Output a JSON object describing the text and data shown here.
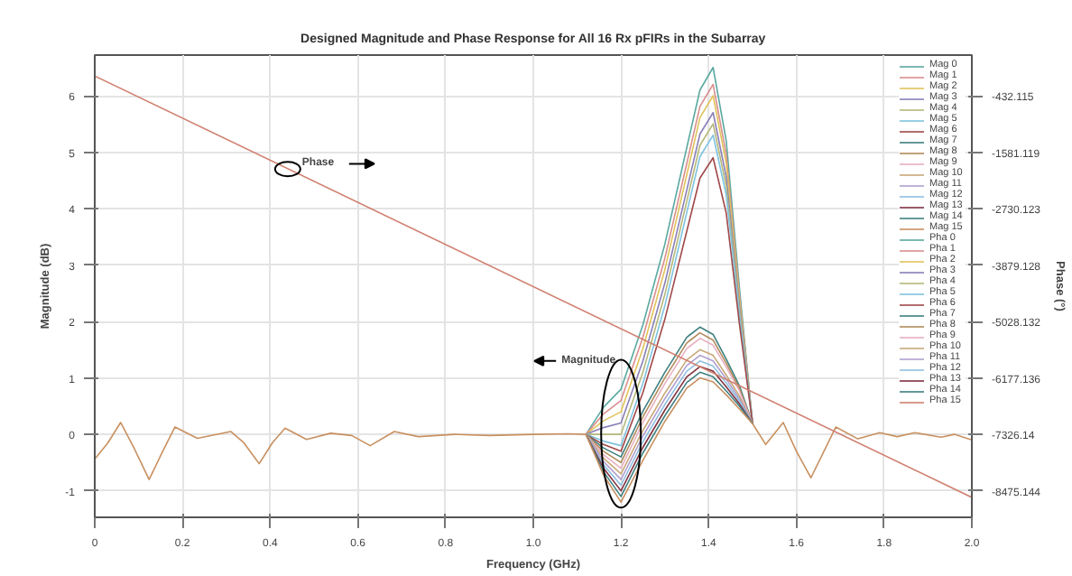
{
  "chart_data": {
    "type": "line",
    "title": "Designed Magnitude and Phase Response for All 16 Rx pFIRs in the Subarray",
    "xlabel": "Frequency (GHz)",
    "ylabel": "Magnitude (dB)",
    "y2label": "Phase (°)",
    "xlim": [
      0,
      2
    ],
    "ylim": [
      -1.47,
      6.72
    ],
    "y2lim": [
      -9015.2,
      395.2
    ],
    "xticks": [
      0,
      0.2,
      0.4,
      0.6,
      0.8,
      {
        "value": 1,
        "label": "1.0"
      },
      1.2,
      1.4,
      1.6,
      1.8,
      {
        "value": 2,
        "label": "2.0"
      }
    ],
    "yticks": [
      -1,
      0,
      1,
      2,
      3,
      4,
      5,
      6
    ],
    "y2ticks": [
      -8475.144,
      -7326.14,
      -6177.136,
      -5028.132,
      -3879.128,
      -2730.123,
      -1581.119,
      -432.115
    ],
    "grid": true,
    "legend": "top right",
    "annotations": [
      {
        "text": "Phase",
        "x": 0.44,
        "y": 4.7
      },
      {
        "text": "Magnitude",
        "x": 1.2,
        "y": 1.3
      }
    ],
    "x": [
      0,
      0.03,
      0.059,
      0.09,
      0.124,
      0.155,
      0.183,
      0.234,
      0.31,
      0.34,
      0.375,
      0.405,
      0.434,
      0.483,
      0.538,
      0.586,
      0.628,
      0.683,
      0.738,
      0.82,
      0.9,
      1.0,
      1.08,
      1.12,
      1.16,
      1.2,
      1.25,
      1.3,
      1.35,
      1.38,
      1.41,
      1.44,
      1.47,
      1.5,
      1.53,
      1.57,
      1.6,
      1.633,
      1.69,
      1.74,
      1.79,
      1.83,
      1.87,
      1.93,
      1.96,
      2.0
    ],
    "series": [
      {
        "name": "Mag 0",
        "color": "#5aa9a0",
        "values": [
          null,
          null,
          null,
          null,
          null,
          null,
          null,
          null,
          null,
          null,
          null,
          null,
          null,
          null,
          null,
          null,
          null,
          null,
          null,
          null,
          null,
          null,
          null,
          0,
          0.48,
          0.8,
          1.94,
          3.37,
          5.08,
          6.1,
          6.5,
          5.2,
          2.6,
          0.19,
          null,
          null,
          null,
          null,
          null,
          null,
          null,
          null,
          null,
          null,
          null,
          null
        ]
      },
      {
        "name": "Mag 1",
        "color": "#d98f8f",
        "values": [
          null,
          null,
          null,
          null,
          null,
          null,
          null,
          null,
          null,
          null,
          null,
          null,
          null,
          null,
          null,
          null,
          null,
          null,
          null,
          null,
          null,
          null,
          null,
          0,
          0.36,
          0.6,
          1.72,
          3.12,
          4.8,
          5.81,
          6.2,
          4.96,
          2.48,
          0.19,
          null,
          null,
          null,
          null,
          null,
          null,
          null,
          null,
          null,
          null,
          null,
          null
        ]
      },
      {
        "name": "Mag 2",
        "color": "#e0c35a",
        "values": [
          null,
          null,
          null,
          null,
          null,
          null,
          null,
          null,
          null,
          null,
          null,
          null,
          null,
          null,
          null,
          null,
          null,
          null,
          null,
          null,
          null,
          null,
          null,
          0,
          0.24,
          0.4,
          1.52,
          2.92,
          4.6,
          5.61,
          6.0,
          4.8,
          2.4,
          0.19,
          null,
          null,
          null,
          null,
          null,
          null,
          null,
          null,
          null,
          null,
          null,
          null
        ]
      },
      {
        "name": "Mag 3",
        "color": "#8a7fb8",
        "values": [
          null,
          null,
          null,
          null,
          null,
          null,
          null,
          null,
          null,
          null,
          null,
          null,
          null,
          null,
          null,
          null,
          null,
          null,
          null,
          null,
          null,
          null,
          null,
          0,
          0.12,
          0.2,
          1.3,
          2.68,
          4.33,
          5.32,
          5.7,
          4.56,
          2.28,
          0.19,
          null,
          null,
          null,
          null,
          null,
          null,
          null,
          null,
          null,
          null,
          null,
          null
        ]
      },
      {
        "name": "Mag 4",
        "color": "#b5b87a",
        "values": [
          null,
          null,
          null,
          null,
          null,
          null,
          null,
          null,
          null,
          null,
          null,
          null,
          null,
          null,
          null,
          null,
          null,
          null,
          null,
          null,
          null,
          null,
          null,
          0,
          0,
          0,
          1.1,
          2.48,
          4.13,
          5.12,
          5.5,
          4.4,
          2.2,
          0.19,
          null,
          null,
          null,
          null,
          null,
          null,
          null,
          null,
          null,
          null,
          null,
          null
        ]
      },
      {
        "name": "Mag 5",
        "color": "#7fc3e0",
        "values": [
          null,
          null,
          null,
          null,
          null,
          null,
          null,
          null,
          null,
          null,
          null,
          null,
          null,
          null,
          null,
          null,
          null,
          null,
          null,
          null,
          null,
          null,
          null,
          0,
          -0.12,
          -0.2,
          0.9,
          2.28,
          3.93,
          4.92,
          5.3,
          4.24,
          2.12,
          0.19,
          null,
          null,
          null,
          null,
          null,
          null,
          null,
          null,
          null,
          null,
          null,
          null
        ]
      },
      {
        "name": "Mag 6",
        "color": "#a04848",
        "values": [
          null,
          null,
          null,
          null,
          null,
          null,
          null,
          null,
          null,
          null,
          null,
          null,
          null,
          null,
          null,
          null,
          null,
          null,
          null,
          null,
          null,
          null,
          null,
          0,
          -0.18,
          -0.3,
          0.74,
          2.04,
          3.6,
          4.54,
          4.9,
          3.92,
          1.96,
          0.19,
          null,
          null,
          null,
          null,
          null,
          null,
          null,
          null,
          null,
          null,
          null,
          null
        ]
      },
      {
        "name": "Mag 7",
        "color": "#3f7f7f",
        "values": [
          null,
          null,
          null,
          null,
          null,
          null,
          null,
          null,
          null,
          null,
          null,
          null,
          null,
          null,
          null,
          null,
          null,
          null,
          null,
          null,
          null,
          null,
          null,
          0,
          -0.24,
          -0.4,
          0.41,
          1.1,
          1.72,
          1.9,
          1.77,
          1.33,
          0.86,
          0.19,
          null,
          null,
          null,
          null,
          null,
          null,
          null,
          null,
          null,
          null,
          null,
          null
        ]
      },
      {
        "name": "Mag 8",
        "color": "#b08a5a",
        "values": [
          null,
          null,
          null,
          null,
          null,
          null,
          null,
          null,
          null,
          null,
          null,
          null,
          null,
          null,
          null,
          null,
          null,
          null,
          null,
          null,
          null,
          null,
          null,
          0,
          -0.3,
          -0.5,
          0.31,
          1.0,
          1.62,
          1.8,
          1.67,
          1.26,
          0.81,
          0.19,
          null,
          null,
          null,
          null,
          null,
          null,
          null,
          null,
          null,
          null,
          null,
          null
        ]
      },
      {
        "name": "Mag 9",
        "color": "#e8b0c0",
        "values": [
          null,
          null,
          null,
          null,
          null,
          null,
          null,
          null,
          null,
          null,
          null,
          null,
          null,
          null,
          null,
          null,
          null,
          null,
          null,
          null,
          null,
          null,
          null,
          0,
          -0.36,
          -0.6,
          0.21,
          0.9,
          1.52,
          1.7,
          1.58,
          1.19,
          0.77,
          0.19,
          null,
          null,
          null,
          null,
          null,
          null,
          null,
          null,
          null,
          null,
          null,
          null
        ]
      },
      {
        "name": "Mag 10",
        "color": "#c8a878",
        "values": [
          null,
          null,
          null,
          null,
          null,
          null,
          null,
          null,
          null,
          null,
          null,
          null,
          null,
          null,
          null,
          null,
          null,
          null,
          null,
          null,
          null,
          null,
          null,
          0,
          -0.42,
          -0.7,
          0.07,
          0.73,
          1.32,
          1.5,
          1.4,
          1.05,
          0.68,
          0.19,
          null,
          null,
          null,
          null,
          null,
          null,
          null,
          null,
          null,
          null,
          null,
          null
        ]
      },
      {
        "name": "Mag 11",
        "color": "#b0a0d0",
        "values": [
          null,
          null,
          null,
          null,
          null,
          null,
          null,
          null,
          null,
          null,
          null,
          null,
          null,
          null,
          null,
          null,
          null,
          null,
          null,
          null,
          null,
          null,
          null,
          0,
          -0.48,
          -0.8,
          -0.03,
          0.63,
          1.22,
          1.4,
          1.3,
          0.98,
          0.63,
          0.19,
          null,
          null,
          null,
          null,
          null,
          null,
          null,
          null,
          null,
          null,
          null,
          null
        ]
      },
      {
        "name": "Mag 12",
        "color": "#90c0e0",
        "values": [
          null,
          null,
          null,
          null,
          null,
          null,
          null,
          null,
          null,
          null,
          null,
          null,
          null,
          null,
          null,
          null,
          null,
          null,
          null,
          null,
          null,
          null,
          null,
          0,
          -0.54,
          -0.9,
          -0.13,
          0.53,
          1.12,
          1.3,
          1.21,
          0.91,
          0.59,
          0.19,
          null,
          null,
          null,
          null,
          null,
          null,
          null,
          null,
          null,
          null,
          null,
          null
        ]
      },
      {
        "name": "Mag 13",
        "color": "#803040",
        "values": [
          null,
          null,
          null,
          null,
          null,
          null,
          null,
          null,
          null,
          null,
          null,
          null,
          null,
          null,
          null,
          null,
          null,
          null,
          null,
          null,
          null,
          null,
          null,
          0,
          -0.6,
          -1.0,
          -0.23,
          0.43,
          1.02,
          1.2,
          1.12,
          0.84,
          0.54,
          0.19,
          null,
          null,
          null,
          null,
          null,
          null,
          null,
          null,
          null,
          null,
          null,
          null
        ]
      },
      {
        "name": "Mag 14",
        "color": "#408080",
        "values": [
          null,
          null,
          null,
          null,
          null,
          null,
          null,
          null,
          null,
          null,
          null,
          null,
          null,
          null,
          null,
          null,
          null,
          null,
          null,
          null,
          null,
          null,
          null,
          0,
          -0.66,
          -1.1,
          -0.33,
          0.33,
          0.92,
          1.1,
          1.02,
          0.77,
          0.5,
          0.19,
          null,
          null,
          null,
          null,
          null,
          null,
          null,
          null,
          null,
          null,
          null,
          null
        ]
      },
      {
        "name": "Mag 15",
        "color": "#c89060",
        "values": [
          -0.44,
          -0.15,
          0.21,
          -0.25,
          -0.8,
          -0.3,
          0.13,
          -0.07,
          0.05,
          -0.15,
          -0.52,
          -0.15,
          0.11,
          -0.09,
          0.02,
          -0.02,
          -0.2,
          0.05,
          -0.04,
          0,
          -0.02,
          0,
          0.01,
          0,
          -0.72,
          -1.2,
          -0.46,
          0.23,
          0.82,
          1.0,
          0.93,
          0.7,
          0.45,
          0.19,
          -0.18,
          0.21,
          -0.3,
          -0.77,
          0.13,
          -0.08,
          0.03,
          -0.04,
          0.03,
          -0.05,
          0,
          -0.1
        ]
      },
      {
        "name": "Pha 0",
        "color": "#5aa9a0",
        "axis": "y2",
        "values": [
          null,
          null,
          null,
          null,
          null,
          null,
          null,
          null,
          null,
          null,
          null,
          null,
          null,
          null,
          null,
          null,
          null,
          null,
          null,
          null,
          null,
          null,
          null,
          null,
          null,
          null,
          null,
          null,
          null,
          null,
          null,
          null,
          null,
          null,
          null,
          null,
          null,
          null,
          null,
          null,
          null,
          null,
          null,
          null,
          null,
          null
        ]
      },
      {
        "name": "Pha 1",
        "color": "#d98f8f",
        "axis": "y2",
        "values": [
          null,
          null,
          null,
          null,
          null,
          null,
          null,
          null,
          null,
          null,
          null,
          null,
          null,
          null,
          null,
          null,
          null,
          null,
          null,
          null,
          null,
          null,
          null,
          null,
          null,
          null,
          null,
          null,
          null,
          null,
          null,
          null,
          null,
          null,
          null,
          null,
          null,
          null,
          null,
          null,
          null,
          null,
          null,
          null,
          null,
          null
        ]
      },
      {
        "name": "Pha 2",
        "color": "#e0c35a",
        "axis": "y2",
        "values": [
          null,
          null,
          null,
          null,
          null,
          null,
          null,
          null,
          null,
          null,
          null,
          null,
          null,
          null,
          null,
          null,
          null,
          null,
          null,
          null,
          null,
          null,
          null,
          null,
          null,
          null,
          null,
          null,
          null,
          null,
          null,
          null,
          null,
          null,
          null,
          null,
          null,
          null,
          null,
          null,
          null,
          null,
          null,
          null,
          null,
          null
        ]
      },
      {
        "name": "Pha 3",
        "color": "#8a7fb8",
        "axis": "y2",
        "values": [
          null,
          null,
          null,
          null,
          null,
          null,
          null,
          null,
          null,
          null,
          null,
          null,
          null,
          null,
          null,
          null,
          null,
          null,
          null,
          null,
          null,
          null,
          null,
          null,
          null,
          null,
          null,
          null,
          null,
          null,
          null,
          null,
          null,
          null,
          null,
          null,
          null,
          null,
          null,
          null,
          null,
          null,
          null,
          null,
          null,
          null
        ]
      },
      {
        "name": "Pha 4",
        "color": "#b5b87a",
        "axis": "y2",
        "values": [
          null,
          null,
          null,
          null,
          null,
          null,
          null,
          null,
          null,
          null,
          null,
          null,
          null,
          null,
          null,
          null,
          null,
          null,
          null,
          null,
          null,
          null,
          null,
          null,
          null,
          null,
          null,
          null,
          null,
          null,
          null,
          null,
          null,
          null,
          null,
          null,
          null,
          null,
          null,
          null,
          null,
          null,
          null,
          null,
          null,
          null
        ]
      },
      {
        "name": "Pha 5",
        "color": "#7fc3e0",
        "axis": "y2",
        "values": [
          null,
          null,
          null,
          null,
          null,
          null,
          null,
          null,
          null,
          null,
          null,
          null,
          null,
          null,
          null,
          null,
          null,
          null,
          null,
          null,
          null,
          null,
          null,
          null,
          null,
          null,
          null,
          null,
          null,
          null,
          null,
          null,
          null,
          null,
          null,
          null,
          null,
          null,
          null,
          null,
          null,
          null,
          null,
          null,
          null,
          null
        ]
      },
      {
        "name": "Pha 6",
        "color": "#a04848",
        "axis": "y2",
        "values": [
          null,
          null,
          null,
          null,
          null,
          null,
          null,
          null,
          null,
          null,
          null,
          null,
          null,
          null,
          null,
          null,
          null,
          null,
          null,
          null,
          null,
          null,
          null,
          null,
          null,
          null,
          null,
          null,
          null,
          null,
          null,
          null,
          null,
          null,
          null,
          null,
          null,
          null,
          null,
          null,
          null,
          null,
          null,
          null,
          null,
          null
        ]
      },
      {
        "name": "Pha 7",
        "color": "#3f7f7f",
        "axis": "y2",
        "values": [
          null,
          null,
          null,
          null,
          null,
          null,
          null,
          null,
          null,
          null,
          null,
          null,
          null,
          null,
          null,
          null,
          null,
          null,
          null,
          null,
          null,
          null,
          null,
          null,
          null,
          null,
          null,
          null,
          null,
          null,
          null,
          null,
          null,
          null,
          null,
          null,
          null,
          null,
          null,
          null,
          null,
          null,
          null,
          null,
          null,
          null
        ]
      },
      {
        "name": "Pha 8",
        "color": "#b08a5a",
        "axis": "y2",
        "values": [
          null,
          null,
          null,
          null,
          null,
          null,
          null,
          null,
          null,
          null,
          null,
          null,
          null,
          null,
          null,
          null,
          null,
          null,
          null,
          null,
          null,
          null,
          null,
          null,
          null,
          null,
          null,
          null,
          null,
          null,
          null,
          null,
          null,
          null,
          null,
          null,
          null,
          null,
          null,
          null,
          null,
          null,
          null,
          null,
          null,
          null
        ]
      },
      {
        "name": "Pha 9",
        "color": "#e8b0c0",
        "axis": "y2",
        "values": [
          null,
          null,
          null,
          null,
          null,
          null,
          null,
          null,
          null,
          null,
          null,
          null,
          null,
          null,
          null,
          null,
          null,
          null,
          null,
          null,
          null,
          null,
          null,
          null,
          null,
          null,
          null,
          null,
          null,
          null,
          null,
          null,
          null,
          null,
          null,
          null,
          null,
          null,
          null,
          null,
          null,
          null,
          null,
          null,
          null,
          null
        ]
      },
      {
        "name": "Pha 10",
        "color": "#c8a878",
        "axis": "y2",
        "values": [
          null,
          null,
          null,
          null,
          null,
          null,
          null,
          null,
          null,
          null,
          null,
          null,
          null,
          null,
          null,
          null,
          null,
          null,
          null,
          null,
          null,
          null,
          null,
          null,
          null,
          null,
          null,
          null,
          null,
          null,
          null,
          null,
          null,
          null,
          null,
          null,
          null,
          null,
          null,
          null,
          null,
          null,
          null,
          null,
          null,
          null
        ]
      },
      {
        "name": "Pha 11",
        "color": "#b0a0d0",
        "axis": "y2",
        "values": [
          null,
          null,
          null,
          null,
          null,
          null,
          null,
          null,
          null,
          null,
          null,
          null,
          null,
          null,
          null,
          null,
          null,
          null,
          null,
          null,
          null,
          null,
          null,
          null,
          null,
          null,
          null,
          null,
          null,
          null,
          null,
          null,
          null,
          null,
          null,
          null,
          null,
          null,
          null,
          null,
          null,
          null,
          null,
          null,
          null,
          null
        ]
      },
      {
        "name": "Pha 12",
        "color": "#90c0e0",
        "axis": "y2",
        "values": [
          null,
          null,
          null,
          null,
          null,
          null,
          null,
          null,
          null,
          null,
          null,
          null,
          null,
          null,
          null,
          null,
          null,
          null,
          null,
          null,
          null,
          null,
          null,
          null,
          null,
          null,
          null,
          null,
          null,
          null,
          null,
          null,
          null,
          null,
          null,
          null,
          null,
          null,
          null,
          null,
          null,
          null,
          null,
          null,
          null,
          null
        ]
      },
      {
        "name": "Pha 13",
        "color": "#803040",
        "axis": "y2",
        "values": [
          null,
          null,
          null,
          null,
          null,
          null,
          null,
          null,
          null,
          null,
          null,
          null,
          null,
          null,
          null,
          null,
          null,
          null,
          null,
          null,
          null,
          null,
          null,
          null,
          null,
          null,
          null,
          null,
          null,
          null,
          null,
          null,
          null,
          null,
          null,
          null,
          null,
          null,
          null,
          null,
          null,
          null,
          null,
          null,
          null,
          null
        ]
      },
      {
        "name": "Pha 14",
        "color": "#408080",
        "axis": "y2",
        "values": [
          null,
          null,
          null,
          null,
          null,
          null,
          null,
          null,
          null,
          null,
          null,
          null,
          null,
          null,
          null,
          null,
          null,
          null,
          null,
          null,
          null,
          null,
          null,
          null,
          null,
          null,
          null,
          null,
          null,
          null,
          null,
          null,
          null,
          null,
          null,
          null,
          null,
          null,
          null,
          null,
          null,
          null,
          null,
          null,
          null,
          null
        ]
      },
      {
        "name": "Pha 15",
        "color": "#d08070",
        "axis": "y2",
        "x": [
          0,
          2
        ],
        "values": [
          -30,
          -8610
        ]
      }
    ]
  }
}
